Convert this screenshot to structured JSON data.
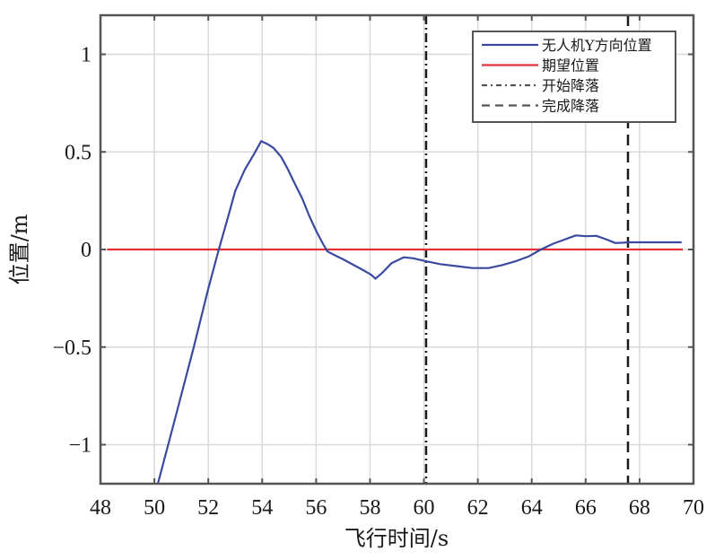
{
  "chart_data": {
    "type": "line",
    "title": "",
    "xlabel": "飞行时间/s",
    "ylabel": "位置/m",
    "xlim": [
      48,
      70
    ],
    "ylim": [
      -1.2,
      1.2
    ],
    "xticks": [
      48,
      50,
      52,
      54,
      56,
      58,
      60,
      62,
      64,
      66,
      68,
      70
    ],
    "xtick_labels": [
      "48",
      "50",
      "52",
      "54",
      "56",
      "58",
      "60",
      "62",
      "64",
      "66",
      "68",
      "70"
    ],
    "yticks": [
      -1,
      -0.5,
      0,
      0.5,
      1
    ],
    "ytick_labels": [
      "−1",
      "−0.5",
      "0",
      "0.5",
      "1"
    ],
    "grid": true,
    "legend_position": "upper right",
    "series": [
      {
        "name": "无人机Y方向位置",
        "color": "#3a4aa0",
        "style": "solid",
        "x": [
          50.13,
          50.8,
          51.46,
          52.0,
          52.39,
          52.7,
          53.0,
          53.36,
          53.7,
          53.96,
          54.2,
          54.42,
          54.7,
          54.92,
          55.2,
          55.49,
          55.75,
          56.02,
          56.25,
          56.42,
          56.7,
          57.0,
          57.4,
          57.8,
          58.05,
          58.2,
          58.45,
          58.8,
          59.25,
          59.6,
          60.08,
          60.6,
          61.2,
          61.8,
          62.4,
          62.9,
          63.4,
          63.9,
          64.34,
          64.8,
          65.2,
          65.64,
          66.0,
          66.4,
          66.8,
          67.1,
          67.4,
          67.57,
          68.0,
          68.5,
          69.0,
          69.56
        ],
        "y": [
          -1.2,
          -0.85,
          -0.5,
          -0.2,
          0.0,
          0.15,
          0.3,
          0.41,
          0.49,
          0.555,
          0.54,
          0.52,
          0.475,
          0.42,
          0.34,
          0.26,
          0.17,
          0.09,
          0.03,
          -0.01,
          -0.03,
          -0.05,
          -0.08,
          -0.11,
          -0.13,
          -0.15,
          -0.12,
          -0.07,
          -0.04,
          -0.045,
          -0.06,
          -0.075,
          -0.085,
          -0.095,
          -0.095,
          -0.08,
          -0.06,
          -0.035,
          0.0,
          0.03,
          0.05,
          0.072,
          0.068,
          0.07,
          0.05,
          0.033,
          0.035,
          0.037,
          0.037,
          0.037,
          0.037,
          0.037
        ]
      },
      {
        "name": "期望位置",
        "color": "#e0303a",
        "style": "solid",
        "x": [
          48.25,
          69.6
        ],
        "y": [
          0,
          0
        ]
      }
    ],
    "vertical_lines": [
      {
        "name": "开始降落",
        "x": 60.08,
        "style": "dash-dot",
        "color": "#1a1a1a"
      },
      {
        "name": "完成降落",
        "x": 67.57,
        "style": "dashed",
        "color": "#1a1a1a"
      }
    ],
    "legend": [
      "无人机Y方向位置",
      "期望位置",
      "开始降落",
      "完成降落"
    ]
  }
}
